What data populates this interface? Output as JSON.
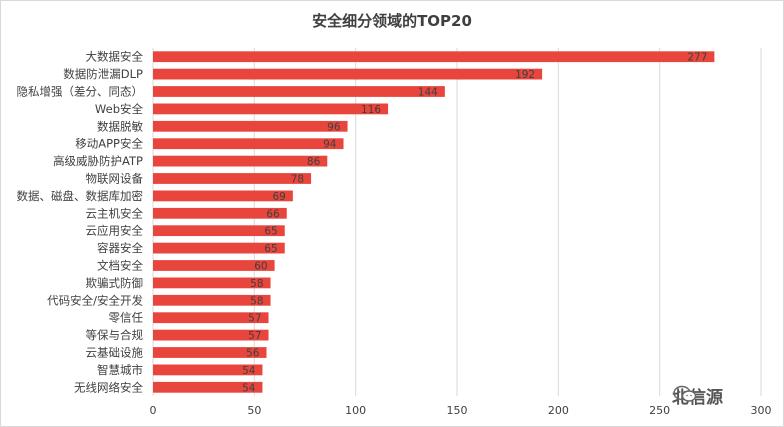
{
  "chart_data": {
    "type": "bar",
    "orientation": "horizontal",
    "title": "安全细分领域的TOP20",
    "categories": [
      "大数据安全",
      "数据防泄漏DLP",
      "隐私增强（差分、同态）",
      "Web安全",
      "数据脱敏",
      "移动APP安全",
      "高级威胁防护ATP",
      "物联网设备",
      "数据、磁盘、数据库加密",
      "云主机安全",
      "云应用安全",
      "容器安全",
      "文档安全",
      "欺骗式防御",
      "代码安全/安全开发",
      "零信任",
      "等保与合规",
      "云基础设施",
      "智慧城市",
      "无线网络安全"
    ],
    "values": [
      277,
      192,
      144,
      116,
      96,
      94,
      86,
      78,
      69,
      66,
      65,
      65,
      60,
      58,
      58,
      57,
      57,
      56,
      54,
      54
    ],
    "xlim": [
      0,
      300
    ],
    "xticks": [
      0,
      50,
      100,
      150,
      200,
      250,
      300
    ],
    "grid": true,
    "bar_color": "#e8453c",
    "legend": "none"
  },
  "watermark": {
    "text": "北信源",
    "icon": "wechat-icon"
  }
}
